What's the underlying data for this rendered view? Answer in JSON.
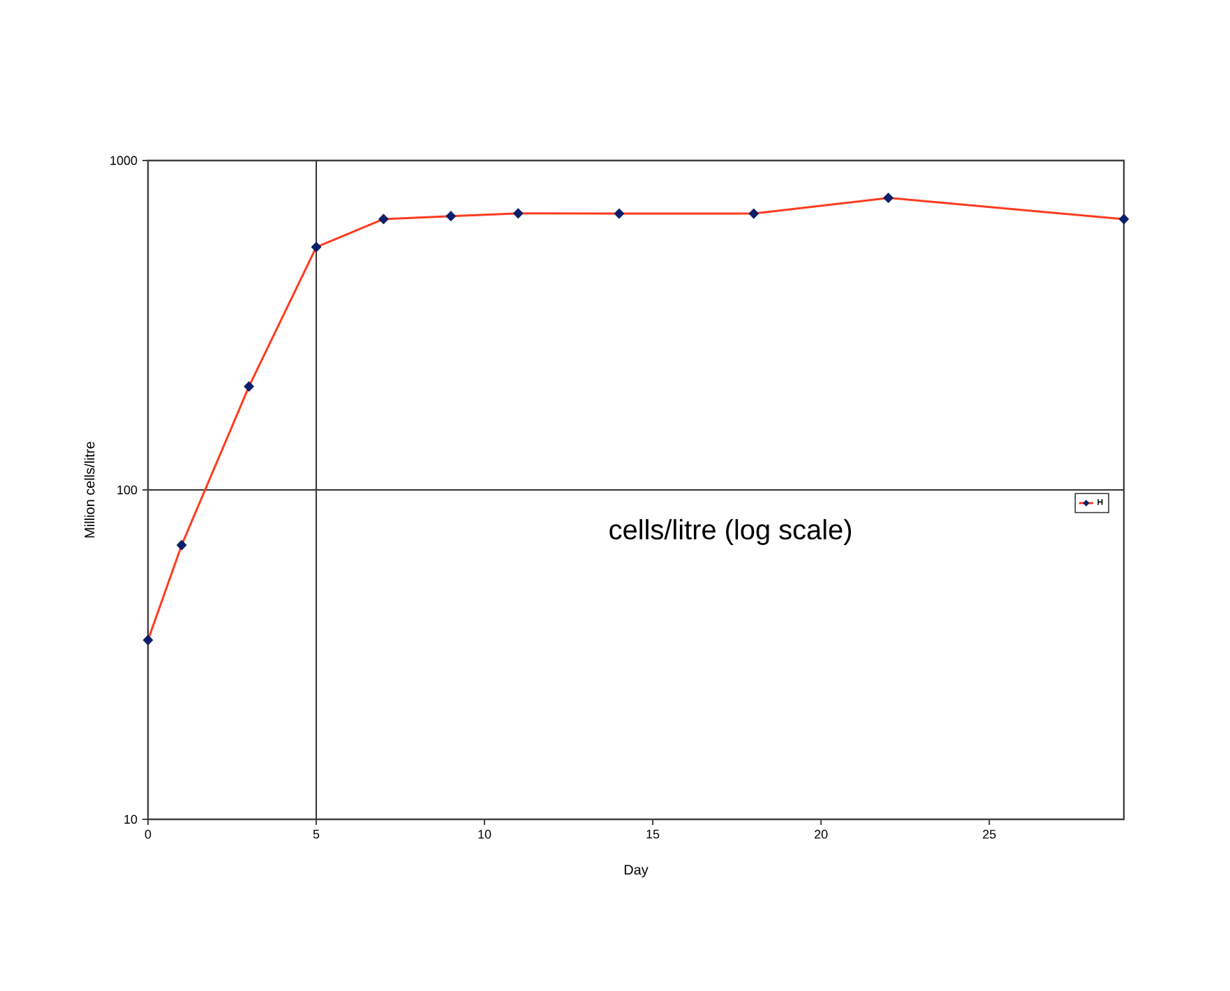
{
  "chart_data": {
    "type": "line",
    "xlabel": "Day",
    "ylabel": "Million cells/litre",
    "annotations": [
      "cells/litre (log scale)"
    ],
    "x": [
      0,
      1,
      3,
      5,
      7,
      9,
      11,
      14,
      18,
      22,
      29
    ],
    "series": [
      {
        "name": "H",
        "color": "#ff3b1f",
        "values": [
          35,
          68,
          206,
          546,
          664,
          678,
          691,
          690,
          690,
          770,
          664
        ]
      }
    ],
    "log": "y",
    "xlim": [
      0,
      29
    ],
    "xticks": [
      0,
      5,
      10,
      15,
      20,
      25
    ],
    "ylim": [
      10,
      1000
    ],
    "yticks": [
      10,
      100,
      1000
    ],
    "ref_lines": [
      {
        "axis": "x",
        "value": 5,
        "color": "#333333"
      },
      {
        "axis": "y",
        "value": 100,
        "color": "#333333"
      }
    ],
    "marker": "diamond",
    "line_style": "solid",
    "legend": "right",
    "grid": false
  }
}
